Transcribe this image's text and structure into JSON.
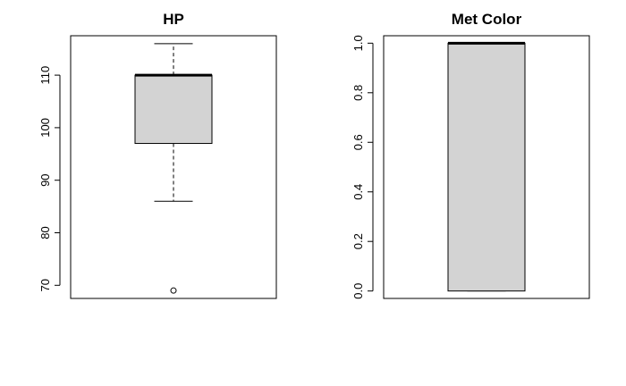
{
  "chart_data": [
    {
      "type": "boxplot",
      "title": "HP",
      "xlabel": "",
      "ylabel": "",
      "ylim": [
        67.5,
        117.5
      ],
      "yticks": [
        70,
        80,
        90,
        100,
        110
      ],
      "ytick_labels": [
        "70",
        "80",
        "90",
        "100",
        "110"
      ],
      "box": {
        "whisker_low": 86,
        "q1": 97,
        "median": 110,
        "q3": 110,
        "whisker_high": 116
      },
      "outliers": [
        69
      ],
      "box_color": "#d3d3d3"
    },
    {
      "type": "boxplot",
      "title": "Met Color",
      "xlabel": "",
      "ylabel": "",
      "ylim": [
        -0.03,
        1.03
      ],
      "yticks": [
        0.0,
        0.2,
        0.4,
        0.6,
        0.8,
        1.0
      ],
      "ytick_labels": [
        "0.0",
        "0.2",
        "0.4",
        "0.6",
        "0.8",
        "1.0"
      ],
      "box": {
        "whisker_low": 0,
        "q1": 0,
        "median": 1,
        "q3": 1,
        "whisker_high": 1
      },
      "outliers": [],
      "box_color": "#d3d3d3"
    }
  ]
}
